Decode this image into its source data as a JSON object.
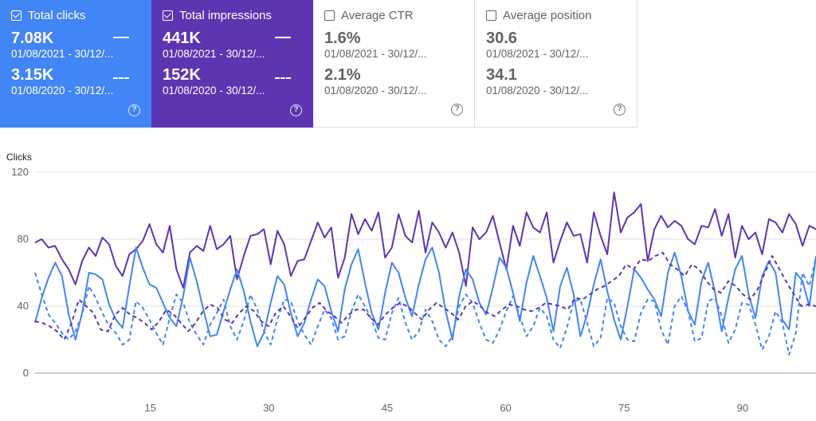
{
  "cards": [
    {
      "title": "Total clicks",
      "checked": true,
      "value_current": "7.08K",
      "date_current": "01/08/2021 - 30/12/...",
      "value_previous": "3.15K",
      "date_previous": "01/08/2020 - 30/12/..."
    },
    {
      "title": "Total impressions",
      "checked": true,
      "value_current": "441K",
      "date_current": "01/08/2021 - 30/12/...",
      "value_previous": "152K",
      "date_previous": "01/08/2020 - 30/12/..."
    },
    {
      "title": "Average CTR",
      "checked": false,
      "value_current": "1.6%",
      "date_current": "01/08/2021 - 30/12/...",
      "value_previous": "2.1%",
      "date_previous": "01/08/2020 - 30/12/..."
    },
    {
      "title": "Average position",
      "checked": false,
      "value_current": "30.6",
      "date_current": "01/08/2021 - 30/12/...",
      "value_previous": "34.1",
      "date_previous": "01/08/2020 - 30/12/..."
    }
  ],
  "help_glyph": "?",
  "colors": {
    "clicks": "#4285f4",
    "impressions": "#5e35b1",
    "grid": "#e0e0e0"
  },
  "chart_data": {
    "type": "line",
    "ylabel": "Clicks",
    "ylim": [
      0,
      120
    ],
    "yticks": [
      0,
      40,
      80,
      120
    ],
    "xticks": [
      15,
      30,
      45,
      60,
      75,
      90
    ],
    "xlim": [
      0.4,
      99.3
    ],
    "grid": true,
    "series": [
      {
        "values": [
          78,
          80,
          75,
          76,
          68,
          62,
          53,
          67,
          75,
          70,
          81,
          77,
          64,
          58,
          71,
          74,
          79,
          89,
          77,
          72,
          88,
          62,
          51,
          72,
          76,
          73,
          88,
          74,
          77,
          82,
          56,
          70,
          82,
          83,
          86,
          65,
          85,
          77,
          58,
          67,
          68,
          79,
          90,
          81,
          87,
          57,
          69,
          95,
          83,
          92,
          85,
          96,
          69,
          75,
          95,
          82,
          78,
          97,
          72,
          90,
          84,
          75,
          84,
          72,
          52,
          87,
          80,
          84,
          94,
          78,
          62,
          88,
          76,
          96,
          87,
          84,
          96,
          66,
          79,
          90,
          82,
          83,
          66,
          96,
          82,
          71,
          108,
          84,
          93,
          96,
          101,
          67,
          86,
          94,
          87,
          91,
          88,
          80,
          77,
          88,
          87,
          98,
          82,
          95,
          69,
          88,
          80,
          84,
          71,
          92,
          90,
          84,
          95,
          89,
          76,
          88,
          86
        ],
        "style": "solid",
        "color": "#5e35b1"
      },
      {
        "values": [
          30,
          45,
          57,
          66,
          58,
          35,
          20,
          36,
          60,
          59,
          56,
          41,
          32,
          27,
          52,
          75,
          63,
          53,
          51,
          42,
          33,
          28,
          46,
          69,
          55,
          38,
          22,
          23,
          37,
          50,
          62,
          49,
          31,
          16,
          24,
          42,
          58,
          53,
          36,
          22,
          30,
          44,
          56,
          52,
          37,
          25,
          50,
          65,
          74,
          54,
          36,
          26,
          48,
          66,
          60,
          45,
          34,
          53,
          68,
          75,
          60,
          37,
          20,
          46,
          62,
          56,
          42,
          35,
          51,
          69,
          63,
          48,
          31,
          54,
          70,
          58,
          45,
          25,
          52,
          63,
          47,
          22,
          35,
          53,
          68,
          49,
          32,
          20,
          40,
          62,
          57,
          50,
          44,
          34,
          60,
          72,
          58,
          37,
          29,
          55,
          66,
          48,
          25,
          45,
          62,
          70,
          47,
          33,
          58,
          67,
          60,
          32,
          26,
          60,
          55,
          40,
          70
        ],
        "style": "solid",
        "color": "#4285f4"
      },
      {
        "values": [
          60,
          47,
          35,
          30,
          24,
          20,
          25,
          35,
          52,
          45,
          36,
          28,
          24,
          17,
          20,
          43,
          39,
          32,
          24,
          17,
          33,
          47,
          42,
          30,
          23,
          17,
          29,
          36,
          44,
          28,
          20,
          31,
          47,
          38,
          25,
          17,
          32,
          44,
          43,
          31,
          23,
          17,
          28,
          38,
          33,
          20,
          22,
          37,
          47,
          40,
          32,
          21,
          20,
          36,
          45,
          30,
          20,
          25,
          38,
          31,
          20,
          16,
          22,
          40,
          47,
          42,
          30,
          20,
          18,
          26,
          37,
          46,
          34,
          22,
          28,
          39,
          34,
          20,
          15,
          27,
          43,
          44,
          30,
          16,
          21,
          45,
          42,
          28,
          20,
          19,
          36,
          44,
          43,
          26,
          17,
          40,
          46,
          37,
          19,
          21,
          43,
          45,
          34,
          18,
          26,
          42,
          41,
          29,
          14,
          22,
          37,
          30,
          11,
          24,
          60,
          52,
          69
        ],
        "style": "dashed",
        "color": "#4285f4"
      },
      {
        "values": [
          31,
          30,
          28,
          25,
          20,
          30,
          44,
          40,
          36,
          26,
          25,
          35,
          39,
          35,
          33,
          30,
          26,
          31,
          38,
          35,
          30,
          25,
          30,
          37,
          41,
          39,
          32,
          30,
          36,
          40,
          37,
          31,
          28,
          36,
          40,
          34,
          27,
          33,
          39,
          42,
          37,
          34,
          30,
          35,
          38,
          38,
          33,
          29,
          35,
          39,
          42,
          40,
          36,
          32,
          38,
          42,
          39,
          36,
          32,
          40,
          43,
          40,
          36,
          34,
          38,
          41,
          40,
          38,
          37,
          39,
          42,
          41,
          40,
          38,
          45,
          44,
          47,
          50,
          52,
          55,
          58,
          65,
          62,
          68,
          67,
          70,
          72,
          65,
          62,
          58,
          65,
          62,
          55,
          50,
          48,
          55,
          52,
          47,
          44,
          50,
          60,
          70,
          62,
          54,
          47,
          40,
          41,
          40
        ],
        "style": "dashed",
        "color": "#5e35b1"
      }
    ]
  }
}
